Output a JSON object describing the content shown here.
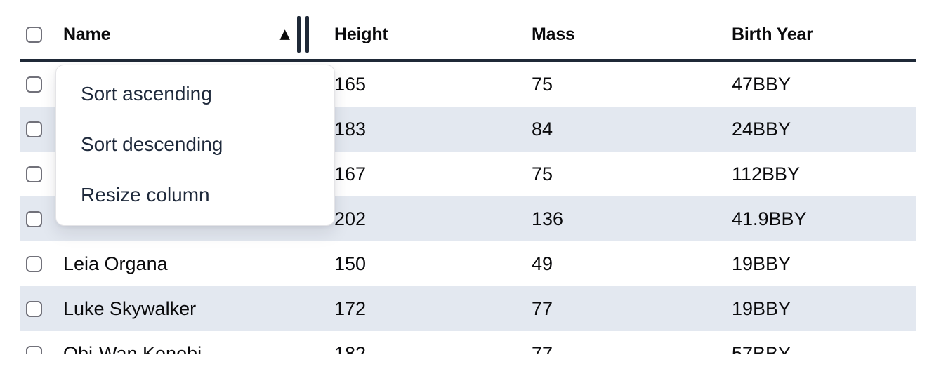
{
  "table": {
    "header": {
      "columns": [
        {
          "label": "Name",
          "sort": "ascending"
        },
        {
          "label": "Height",
          "sort": null
        },
        {
          "label": "Mass",
          "sort": null
        },
        {
          "label": "Birth Year",
          "sort": null
        }
      ]
    },
    "rows": [
      {
        "name": "",
        "height": "165",
        "mass": "75",
        "birth_year": "47BBY"
      },
      {
        "name": "",
        "height": "183",
        "mass": "84",
        "birth_year": "24BBY"
      },
      {
        "name": "",
        "height": "167",
        "mass": "75",
        "birth_year": "112BBY"
      },
      {
        "name": "",
        "height": "202",
        "mass": "136",
        "birth_year": "41.9BBY"
      },
      {
        "name": "Leia Organa",
        "height": "150",
        "mass": "49",
        "birth_year": "19BBY"
      },
      {
        "name": "Luke Skywalker",
        "height": "172",
        "mass": "77",
        "birth_year": "19BBY"
      },
      {
        "name": "Obi-Wan Kenobi",
        "height": "182",
        "mass": "77",
        "birth_year": "57BBY"
      }
    ]
  },
  "context_menu": {
    "items": [
      {
        "label": "Sort ascending"
      },
      {
        "label": "Sort descending"
      },
      {
        "label": "Resize column"
      }
    ]
  },
  "icons": {
    "sort_ascending_icon": "▲",
    "resize_handle_icon": "double-vertical-bars"
  },
  "colors": {
    "row_stripe": "#e3e8f0",
    "header_border": "#1f2937",
    "menu_text": "#1e293b",
    "cell_text": "#0a0a0c",
    "checkbox_border": "#71717a",
    "menu_border": "#e4e4e7"
  }
}
